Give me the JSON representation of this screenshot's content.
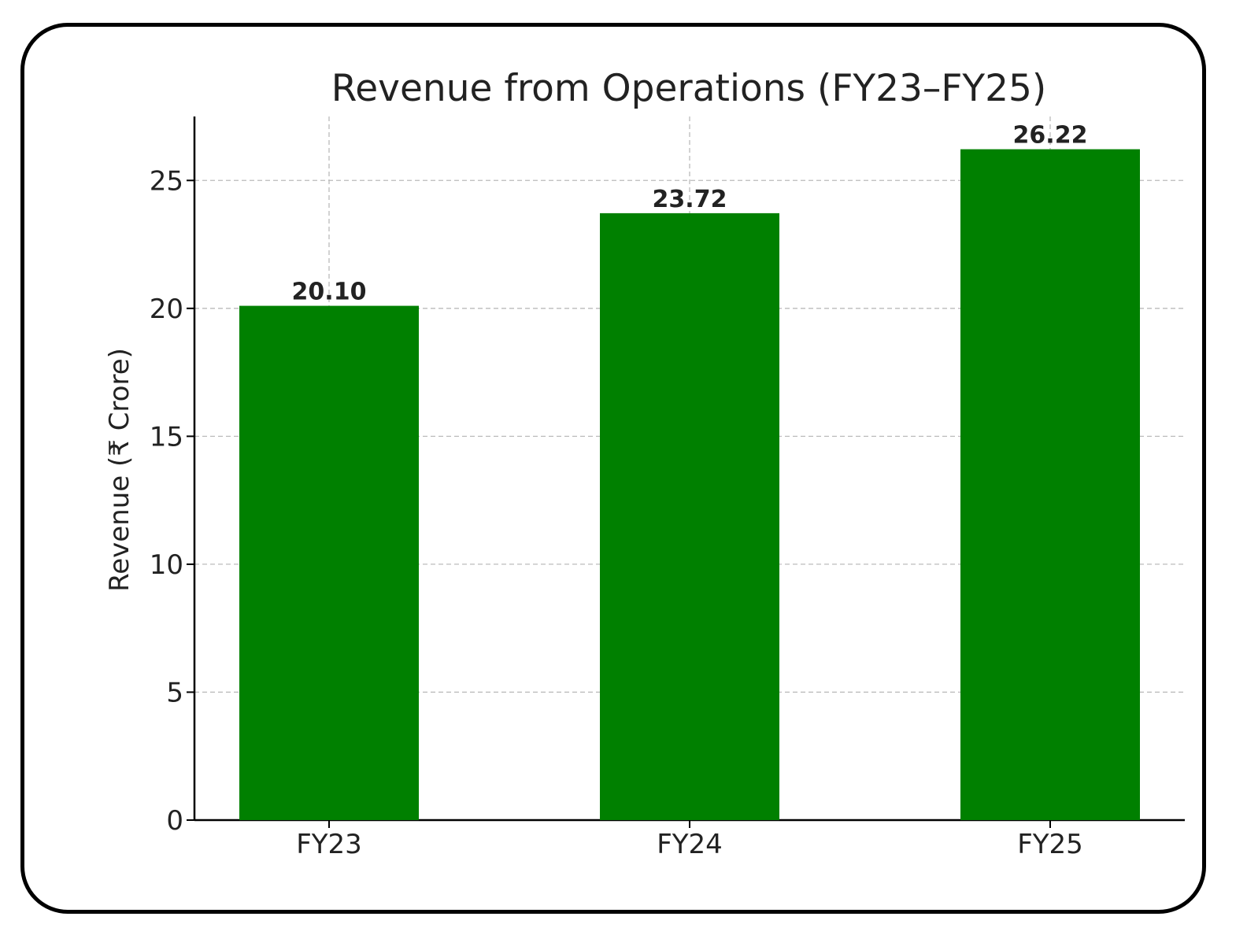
{
  "chart_data": {
    "type": "bar",
    "title": "Revenue from Operations (FY23–FY25)",
    "xlabel": "",
    "ylabel": "Revenue (₹ Crore)",
    "categories": [
      "FY23",
      "FY24",
      "FY25"
    ],
    "values": [
      20.1,
      23.72,
      26.22
    ],
    "value_labels": [
      "20.10",
      "23.72",
      "26.22"
    ],
    "ylim": [
      0,
      27.5
    ],
    "yticks": [
      0,
      5,
      10,
      15,
      20,
      25
    ],
    "grid": true,
    "bar_color": "#008000"
  }
}
